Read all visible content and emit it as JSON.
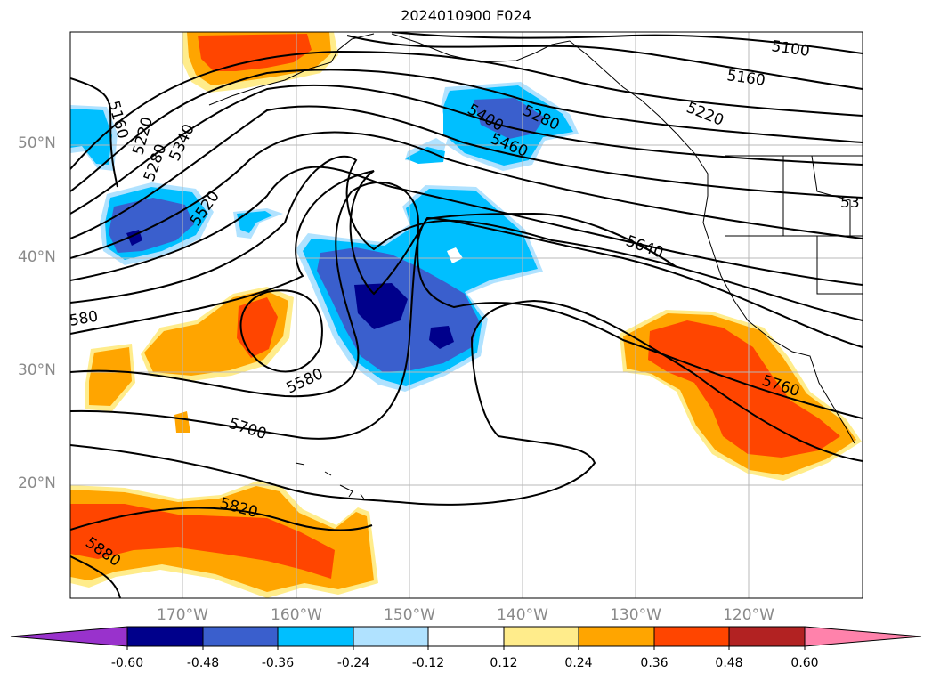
{
  "title": "2024010900 F024",
  "latitude_labels": [
    "50°N",
    "40°N",
    "30°N",
    "20°N"
  ],
  "longitude_labels": [
    "170°W",
    "160°W",
    "150°W",
    "140°W",
    "130°W",
    "120°W"
  ],
  "contour_labels": [
    "5100",
    "5160",
    "5220",
    "5280",
    "5400",
    "5460",
    "5160",
    "5220",
    "5280",
    "5340",
    "5520",
    "5640",
    "53",
    "580",
    "5580",
    "5760",
    "5700",
    "5820",
    "5880"
  ],
  "colorbar": {
    "ticks": [
      "-0.60",
      "-0.48",
      "-0.36",
      "-0.24",
      "-0.12",
      "0.12",
      "0.24",
      "0.36",
      "0.48",
      "0.60"
    ],
    "colors": [
      "#9932cc",
      "#00008b",
      "#3a5fcd",
      "#00bfff",
      "#b0e2ff",
      "#ffffff",
      "#ffec8b",
      "#ffa500",
      "#ff4500",
      "#b22222",
      "#ff82ab"
    ]
  },
  "fill_colors": {
    "deep_blue": "#00008b",
    "blue": "#3a5fcd",
    "cyan": "#00bfff",
    "light_blue": "#b0e2ff",
    "light_yellow": "#ffec8b",
    "orange": "#ffa500",
    "red_orange": "#ff4500"
  }
}
